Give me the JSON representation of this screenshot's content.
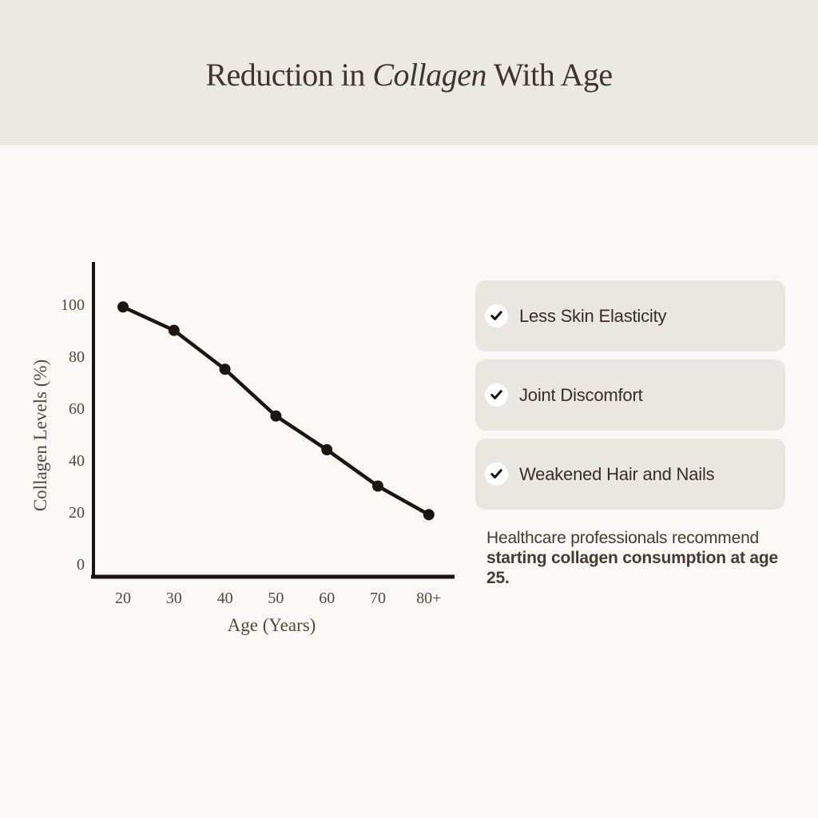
{
  "header": {
    "title_prefix": "Reduction in ",
    "title_italic": "Collagen",
    "title_suffix": " With Age"
  },
  "chart_data": {
    "type": "line",
    "categories": [
      "20",
      "30",
      "40",
      "50",
      "60",
      "70",
      "80+"
    ],
    "values": [
      99,
      90,
      75,
      57,
      44,
      30,
      19
    ],
    "series_name": "Collagen Levels",
    "title": "",
    "xlabel": "Age (Years)",
    "ylabel": "Collagen Levels (%)",
    "yticks": [
      0,
      20,
      40,
      60,
      80,
      100
    ],
    "ylim": [
      0,
      115
    ],
    "grid": false,
    "legend": false,
    "marker": "filled-circle",
    "line_color": "#1B140F"
  },
  "checklist": {
    "items": [
      {
        "label": "Less Skin Elasticity",
        "checked": true
      },
      {
        "label": "Joint Discomfort",
        "checked": true
      },
      {
        "label": "Weakened Hair and Nails",
        "checked": true
      }
    ]
  },
  "footnote": {
    "line1": "Healthcare professionals recommend",
    "line2": "starting collagen consumption at age 25."
  },
  "colors": {
    "header_bg": "#ECE9E3",
    "body_bg": "#FAF9F5",
    "card_bg": "#EAE6E0",
    "title_text": "#3E352C",
    "body_text": "#362E27",
    "chart_ink": "#1B140F",
    "chart_label": "#54483C",
    "check_circle_bg": "#FFFFFF",
    "check_mark": "#131313"
  }
}
